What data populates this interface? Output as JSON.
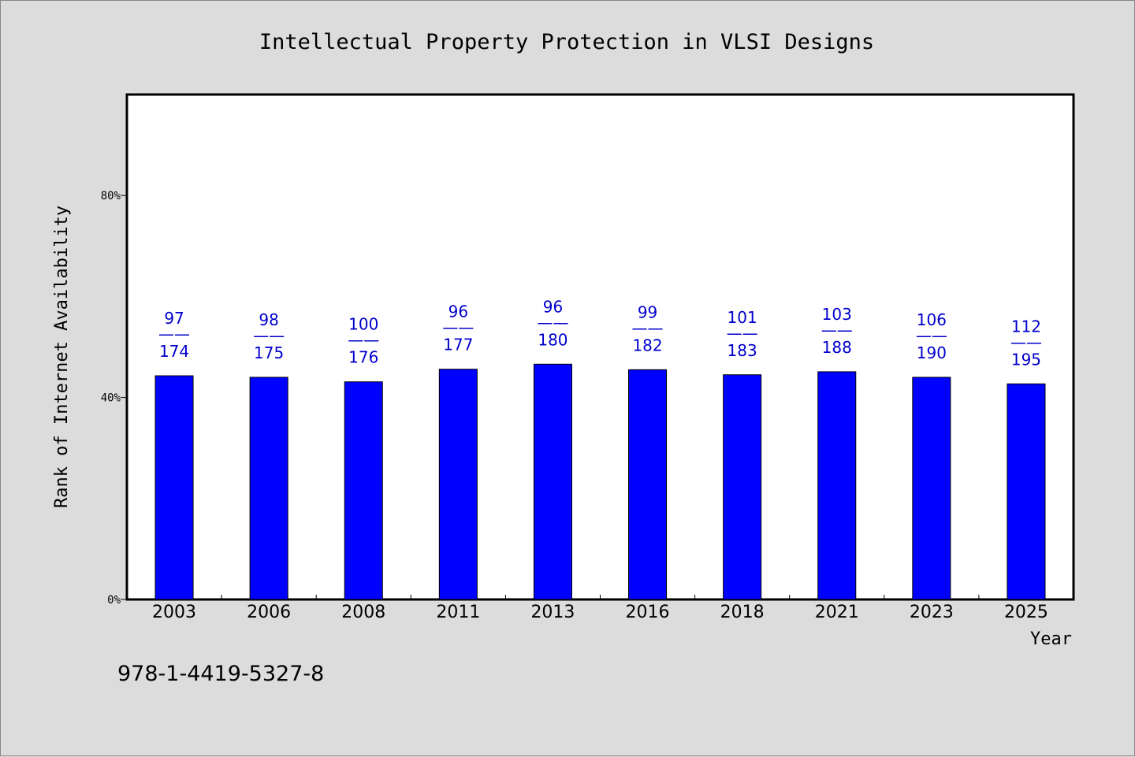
{
  "chart_data": {
    "type": "bar",
    "title": "Intellectual Property Protection in VLSI Designs",
    "xlabel": "Year",
    "ylabel": "Rank of Internet Availability",
    "ylim": [
      0,
      100
    ],
    "yticks": [
      {
        "value": 0,
        "label": "0%"
      },
      {
        "value": 40,
        "label": "40%"
      },
      {
        "value": 80,
        "label": "80%"
      }
    ],
    "categories": [
      "2003",
      "2006",
      "2008",
      "2011",
      "2013",
      "2016",
      "2018",
      "2021",
      "2023",
      "2025"
    ],
    "values": [
      44.3,
      44.0,
      43.1,
      45.6,
      46.6,
      45.5,
      44.5,
      45.1,
      44.0,
      42.7
    ],
    "labels_top": [
      "97",
      "98",
      "100",
      "96",
      "96",
      "99",
      "101",
      "103",
      "106",
      "112"
    ],
    "labels_sep": "——",
    "labels_bottom": [
      "174",
      "175",
      "176",
      "177",
      "180",
      "182",
      "183",
      "188",
      "190",
      "195"
    ],
    "bar_color": "#0000ff",
    "label_color": "#0000cc",
    "grid": false
  },
  "footnote": "978-1-4419-5327-8"
}
